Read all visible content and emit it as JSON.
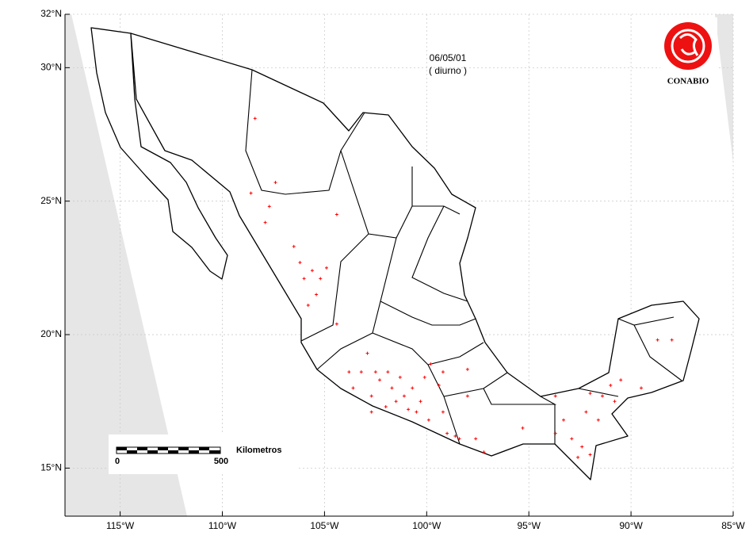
{
  "chart_data": {
    "type": "scatter",
    "title": "06/05/01",
    "subtitle": "( diurno )",
    "logo_text": "CONABIO",
    "scale_bar": {
      "labels": [
        "0",
        "500"
      ],
      "unit": "Kilometros"
    },
    "xlim": [
      -117.7,
      -85
    ],
    "ylim": [
      13.2,
      32
    ],
    "xticks": [
      {
        "value": -115,
        "label": "115°W"
      },
      {
        "value": -110,
        "label": "110°W"
      },
      {
        "value": -105,
        "label": "105°W"
      },
      {
        "value": -100,
        "label": "100°W"
      },
      {
        "value": -95,
        "label": "95°W"
      },
      {
        "value": -90,
        "label": "90°W"
      },
      {
        "value": -85,
        "label": "85°W"
      }
    ],
    "yticks": [
      {
        "value": 15,
        "label": "15°N"
      },
      {
        "value": 20,
        "label": "20°N"
      },
      {
        "value": 25,
        "label": "25°N"
      },
      {
        "value": 30,
        "label": "30°N"
      },
      {
        "value": 32,
        "label": "32°N"
      }
    ],
    "grid": true,
    "color": "#ff0000",
    "marker": "+",
    "x": [
      -108.4,
      -108.6,
      -107.4,
      -107.7,
      -107.9,
      -106.5,
      -106.2,
      -106.0,
      -105.6,
      -105.2,
      -104.9,
      -105.4,
      -105.8,
      -104.4,
      -104.4,
      -103.8,
      -103.2,
      -103.6,
      -102.9,
      -102.5,
      -102.3,
      -101.9,
      -101.7,
      -101.5,
      -101.3,
      -101.1,
      -100.9,
      -100.7,
      -100.5,
      -100.3,
      -100.1,
      -99.9,
      -99.8,
      -99.4,
      -99.2,
      -99.0,
      -98.6,
      -98.4,
      -98.0,
      -97.6,
      -97.2,
      -98.0,
      -99.2,
      -102.7,
      -102.0,
      -102.7,
      -95.3,
      -93.7,
      -93.3,
      -92.9,
      -92.4,
      -92.0,
      -92.2,
      -91.6,
      -91.4,
      -92.0,
      -91.0,
      -90.5,
      -89.5,
      -88.7,
      -88.0,
      -90.8,
      -93.7,
      -92.6
    ],
    "values": [
      28.1,
      25.3,
      25.7,
      24.8,
      24.2,
      23.3,
      22.7,
      22.1,
      22.4,
      22.1,
      22.5,
      21.5,
      21.1,
      24.5,
      20.4,
      18.6,
      18.6,
      18.0,
      19.3,
      18.6,
      18.3,
      18.6,
      18.0,
      17.5,
      18.4,
      17.7,
      17.2,
      18.0,
      17.1,
      17.5,
      18.4,
      16.8,
      18.9,
      18.1,
      17.1,
      16.3,
      16.2,
      16.1,
      17.7,
      16.1,
      15.6,
      18.7,
      18.6,
      17.7,
      17.3,
      17.1,
      16.5,
      16.3,
      16.8,
      16.1,
      15.8,
      15.5,
      17.1,
      16.8,
      17.7,
      17.8,
      18.1,
      18.3,
      18.0,
      19.8,
      19.8,
      17.5,
      17.7,
      15.4
    ]
  }
}
